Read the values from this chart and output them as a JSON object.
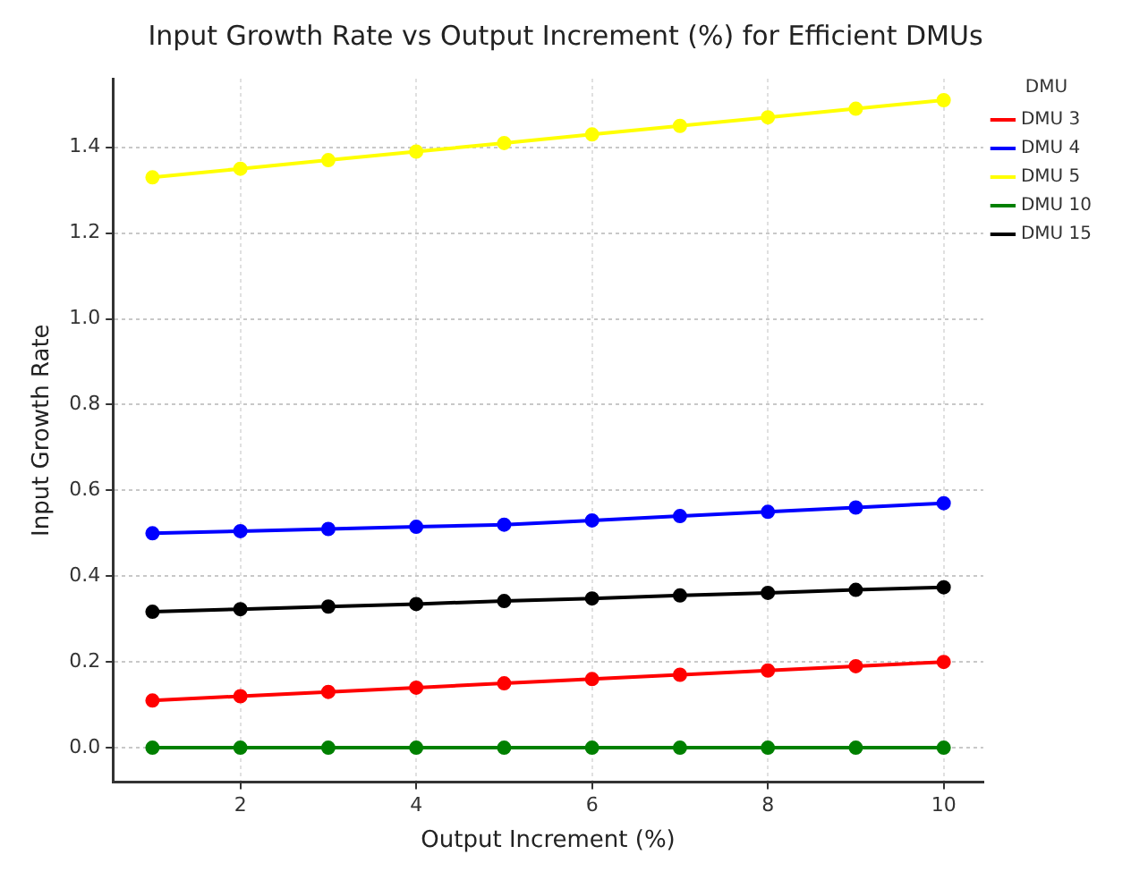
{
  "chart_data": {
    "type": "line",
    "title": "Input Growth Rate vs Output Increment (%) for Efficient DMUs",
    "xlabel": "Output Increment (%)",
    "ylabel": "Input Growth Rate",
    "legend_title": "DMU",
    "x": [
      1,
      2,
      3,
      4,
      5,
      6,
      7,
      8,
      9,
      10
    ],
    "series": [
      {
        "name": "DMU 3",
        "color": "#ff0000",
        "values": [
          0.11,
          0.12,
          0.13,
          0.14,
          0.15,
          0.16,
          0.17,
          0.18,
          0.19,
          0.2
        ]
      },
      {
        "name": "DMU 4",
        "color": "#0000ff",
        "values": [
          0.5,
          0.505,
          0.51,
          0.515,
          0.52,
          0.53,
          0.54,
          0.55,
          0.56,
          0.57
        ]
      },
      {
        "name": "DMU 5",
        "color": "#ffff00",
        "values": [
          1.33,
          1.35,
          1.37,
          1.39,
          1.41,
          1.43,
          1.45,
          1.47,
          1.49,
          1.51
        ]
      },
      {
        "name": "DMU 10",
        "color": "#008000",
        "values": [
          0,
          0,
          0,
          0,
          0,
          0,
          0,
          0,
          0,
          0
        ]
      },
      {
        "name": "DMU 15",
        "color": "#000000",
        "values": [
          0.317,
          0.323,
          0.329,
          0.335,
          0.342,
          0.348,
          0.355,
          0.361,
          0.368,
          0.374
        ]
      }
    ],
    "xlim": [
      0.55,
      10.45
    ],
    "ylim": [
      -0.08,
      1.56
    ],
    "xticks": [
      2,
      4,
      6,
      8,
      10
    ],
    "yticks": [
      {
        "value": 0,
        "label": "0.0"
      },
      0.2,
      0.4,
      0.6,
      0.8,
      {
        "value": 1,
        "label": "1.0"
      },
      1.2,
      1.4
    ],
    "grid": true,
    "legend": "top right",
    "marker": "circle",
    "line_style": "solid"
  }
}
